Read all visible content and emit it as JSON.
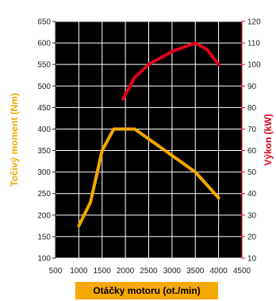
{
  "chart_data": {
    "type": "line",
    "x_label": "Otáčky motoru (ot./min)",
    "x_ticks": [
      500,
      1000,
      1500,
      2000,
      2500,
      3000,
      3500,
      4000,
      4500
    ],
    "xlim": [
      500,
      4500
    ],
    "y_left": {
      "label": "Točivý moment (Nm)",
      "ticks": [
        100,
        150,
        200,
        250,
        300,
        350,
        400,
        450,
        500,
        550,
        600,
        650
      ],
      "ylim": [
        100,
        650
      ]
    },
    "y_right": {
      "label": "Výkon (kW)",
      "ticks": [
        10,
        20,
        30,
        40,
        50,
        60,
        70,
        80,
        90,
        100,
        110,
        120
      ],
      "ylim": [
        10,
        120
      ]
    },
    "grid": true,
    "series": [
      {
        "axis": "left",
        "color": "#f5a800",
        "points": [
          [
            1000,
            175
          ],
          [
            1250,
            230
          ],
          [
            1500,
            350
          ],
          [
            1750,
            400
          ],
          [
            2200,
            400
          ],
          [
            3500,
            300
          ],
          [
            4000,
            240
          ]
        ]
      },
      {
        "axis": "right",
        "color": "#e3001b",
        "points": [
          [
            1950,
            84
          ],
          [
            2200,
            94
          ],
          [
            2500,
            100
          ],
          [
            3000,
            106
          ],
          [
            3500,
            110
          ],
          [
            3750,
            107
          ],
          [
            4000,
            100
          ]
        ]
      }
    ],
    "colors": {
      "plot_background": "#000000",
      "grid": "#ffffff",
      "left_axis": "#222222",
      "right_axis": "#e3001b",
      "left_title": "#f5a800",
      "right_title": "#e3001b",
      "x_title_bar": "#f5a800",
      "x_title_text": "#000000"
    }
  }
}
